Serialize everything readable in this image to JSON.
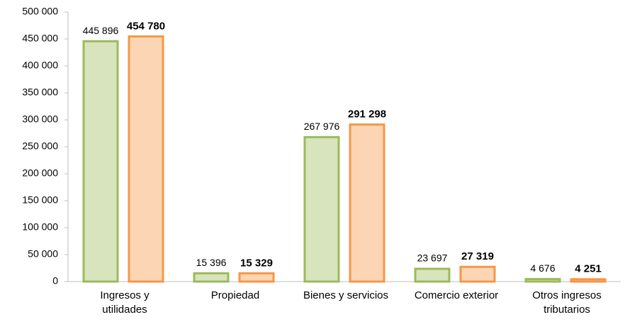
{
  "chart_data": {
    "type": "bar",
    "categories": [
      "Ingresos y\nutilidades",
      "Propiedad",
      "Bienes y servicios",
      "Comercio exterior",
      "Otros ingresos\ntributarios"
    ],
    "series": [
      {
        "color": "#9bbb59",
        "fill": "#d7e4bd",
        "values": [
          445896,
          15396,
          267976,
          23697,
          4676
        ],
        "value_labels": [
          "445 896",
          "15 396",
          "267 976",
          "23 697",
          "4 676"
        ]
      },
      {
        "color": "#f79646",
        "fill": "#fcd5b5",
        "values": [
          454780,
          15329,
          291298,
          27319,
          4251
        ],
        "value_labels": [
          "454 780",
          "15 329",
          "291 298",
          "27 319",
          "4 251"
        ]
      }
    ],
    "ylim": [
      0,
      500000
    ],
    "yticks": [
      0,
      {
        "value": 50000,
        "label": "50 000"
      },
      {
        "value": 100000,
        "label": "100 000"
      },
      {
        "value": 150000,
        "label": "150 000"
      },
      {
        "value": 200000,
        "label": "200 000"
      },
      {
        "value": 250000,
        "label": "250 000"
      },
      {
        "value": 300000,
        "label": "300 000"
      },
      {
        "value": 350000,
        "label": "350 000"
      },
      {
        "value": 400000,
        "label": "400 000"
      },
      {
        "value": 450000,
        "label": "450 000"
      },
      {
        "value": 500000,
        "label": "500 000"
      }
    ]
  }
}
